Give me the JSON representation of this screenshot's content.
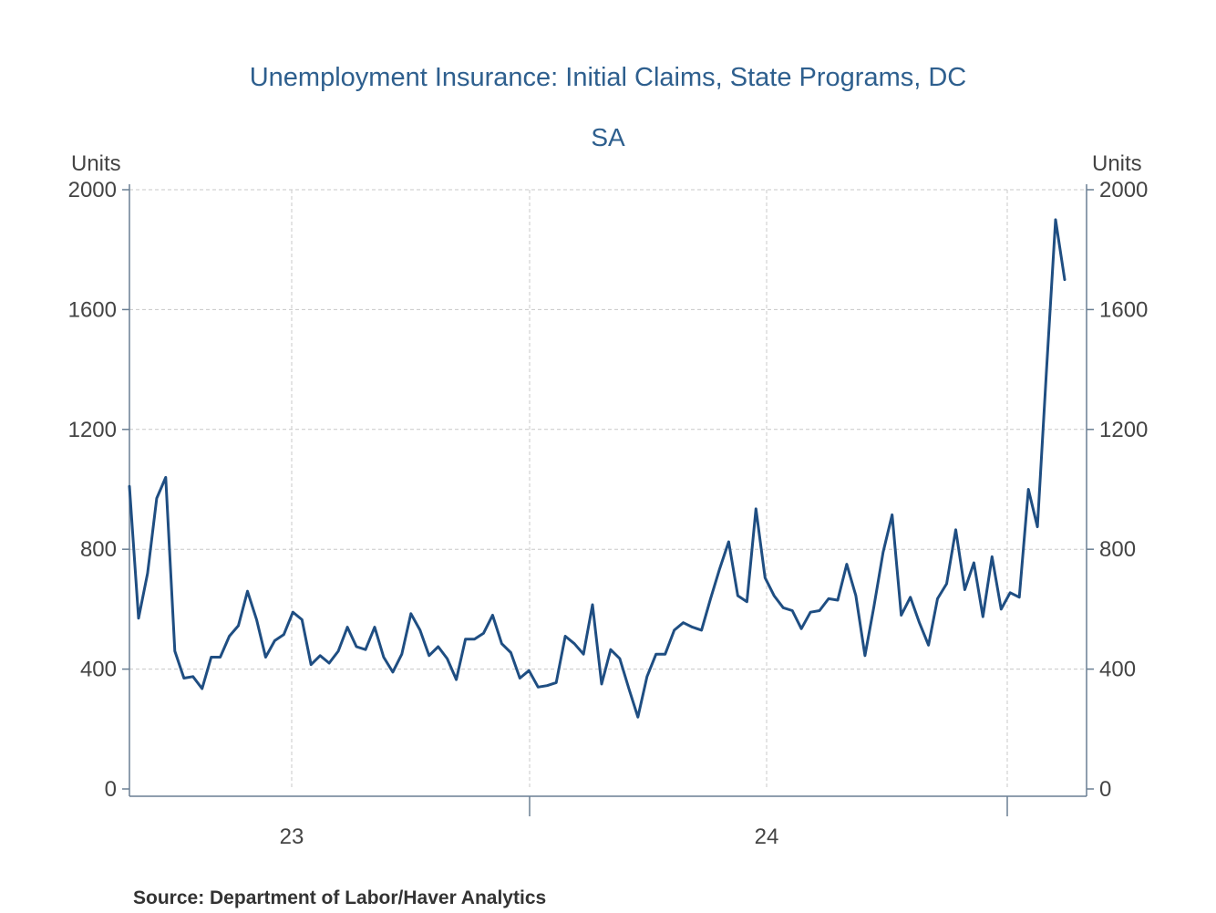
{
  "chart_data": {
    "type": "line",
    "title": "Unemployment Insurance: Initial Claims, State Programs, DC",
    "subtitle": "SA",
    "ylabel_left": "Units",
    "ylabel_right": "Units",
    "ylim": [
      0,
      2000
    ],
    "yticks": [
      "0",
      "400",
      "800",
      "1200",
      "1600",
      "2000"
    ],
    "xtick_labels": [
      "23",
      "24"
    ],
    "grid": true,
    "series": [
      {
        "color": "#1f4e82",
        "values": [
          1010,
          570,
          720,
          970,
          1040,
          460,
          370,
          375,
          335,
          440,
          440,
          510,
          545,
          660,
          565,
          440,
          495,
          515,
          590,
          565,
          415,
          445,
          420,
          460,
          540,
          475,
          465,
          540,
          440,
          390,
          450,
          585,
          530,
          445,
          475,
          435,
          365,
          500,
          500,
          520,
          580,
          485,
          455,
          370,
          395,
          340,
          345,
          355,
          510,
          485,
          450,
          615,
          350,
          465,
          435,
          335,
          240,
          375,
          450,
          450,
          530,
          555,
          540,
          530,
          635,
          735,
          825,
          645,
          625,
          935,
          705,
          645,
          605,
          595,
          535,
          590,
          595,
          635,
          630,
          750,
          645,
          445,
          610,
          790,
          915,
          580,
          640,
          555,
          480,
          635,
          685,
          865,
          665,
          755,
          575,
          775,
          600,
          655,
          640,
          1000,
          875,
          1400,
          1900,
          1700
        ]
      }
    ]
  },
  "source": "Source:  Department of Labor/Haver Analytics"
}
